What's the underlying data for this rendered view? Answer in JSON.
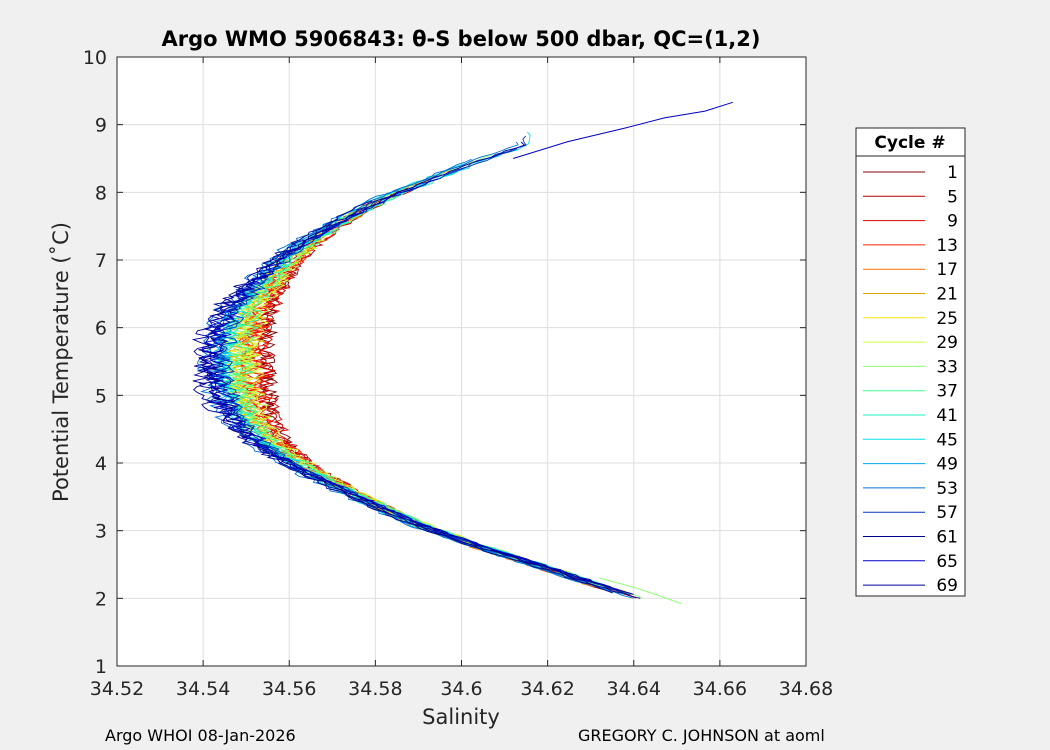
{
  "chart_data": {
    "type": "line",
    "title": "Argo WMO 5906843: θ-S below 500 dbar,  QC=(1,2)",
    "xlabel": "Salinity",
    "ylabel": "Potential Temperature (˚C)",
    "xlim": [
      34.52,
      34.68
    ],
    "ylim": [
      1,
      10
    ],
    "xticks": [
      34.52,
      34.54,
      34.56,
      34.58,
      34.6,
      34.62,
      34.64,
      34.66,
      34.68
    ],
    "xtick_labels": [
      "34.52",
      "34.54",
      "34.56",
      "34.58",
      "34.6",
      "34.62",
      "34.64",
      "34.66",
      "34.68"
    ],
    "yticks": [
      1,
      2,
      3,
      4,
      5,
      6,
      7,
      8,
      9,
      10
    ],
    "ytick_labels": [
      "1",
      "2",
      "3",
      "4",
      "5",
      "6",
      "7",
      "8",
      "9",
      "10"
    ],
    "grid": true,
    "legend": {
      "title": "Cycle #",
      "placement": "right-outside",
      "entries": [
        "1",
        "5",
        "9",
        "13",
        "17",
        "21",
        "25",
        "29",
        "33",
        "37",
        "41",
        "45",
        "49",
        "53",
        "57",
        "61",
        "65",
        "69"
      ],
      "colors": [
        "#7f0000",
        "#b00000",
        "#e60000",
        "#ff2000",
        "#ff7000",
        "#d9a800",
        "#ffe600",
        "#cfff30",
        "#8fff70",
        "#40ff90",
        "#20f0c0",
        "#00e0f0",
        "#00a8e8",
        "#0070d8",
        "#0030c0",
        "#00008f",
        "#0000c8",
        "#0000a0"
      ]
    },
    "series_note_free": true,
    "curve": {
      "t": [
        2.0,
        2.2,
        2.5,
        2.8,
        3.1,
        3.5,
        3.9,
        4.3,
        4.7,
        5.1,
        5.5,
        5.9,
        6.3,
        6.7,
        7.1,
        7.5,
        7.9,
        8.2,
        8.5,
        8.7
      ],
      "s": [
        34.641,
        34.631,
        34.617,
        34.602,
        34.589,
        34.575,
        34.562,
        34.552,
        34.546,
        34.543,
        34.542,
        34.543,
        34.546,
        34.552,
        34.559,
        34.569,
        34.581,
        34.593,
        34.605,
        34.614
      ]
    },
    "extremes": {
      "warm_tail": {
        "t": [
          8.5,
          8.75,
          8.95,
          9.1,
          9.2,
          9.33
        ],
        "s": [
          34.612,
          34.625,
          34.637,
          34.648,
          34.656,
          34.663
        ]
      },
      "cold_tail": {
        "t": [
          2.3,
          2.15,
          2.02,
          1.92
        ],
        "s": [
          34.632,
          34.641,
          34.647,
          34.651
        ]
      }
    },
    "footer_left": "Argo WHOI 08-Jan-2026",
    "footer_right": "GREGORY C. JOHNSON at aoml"
  }
}
